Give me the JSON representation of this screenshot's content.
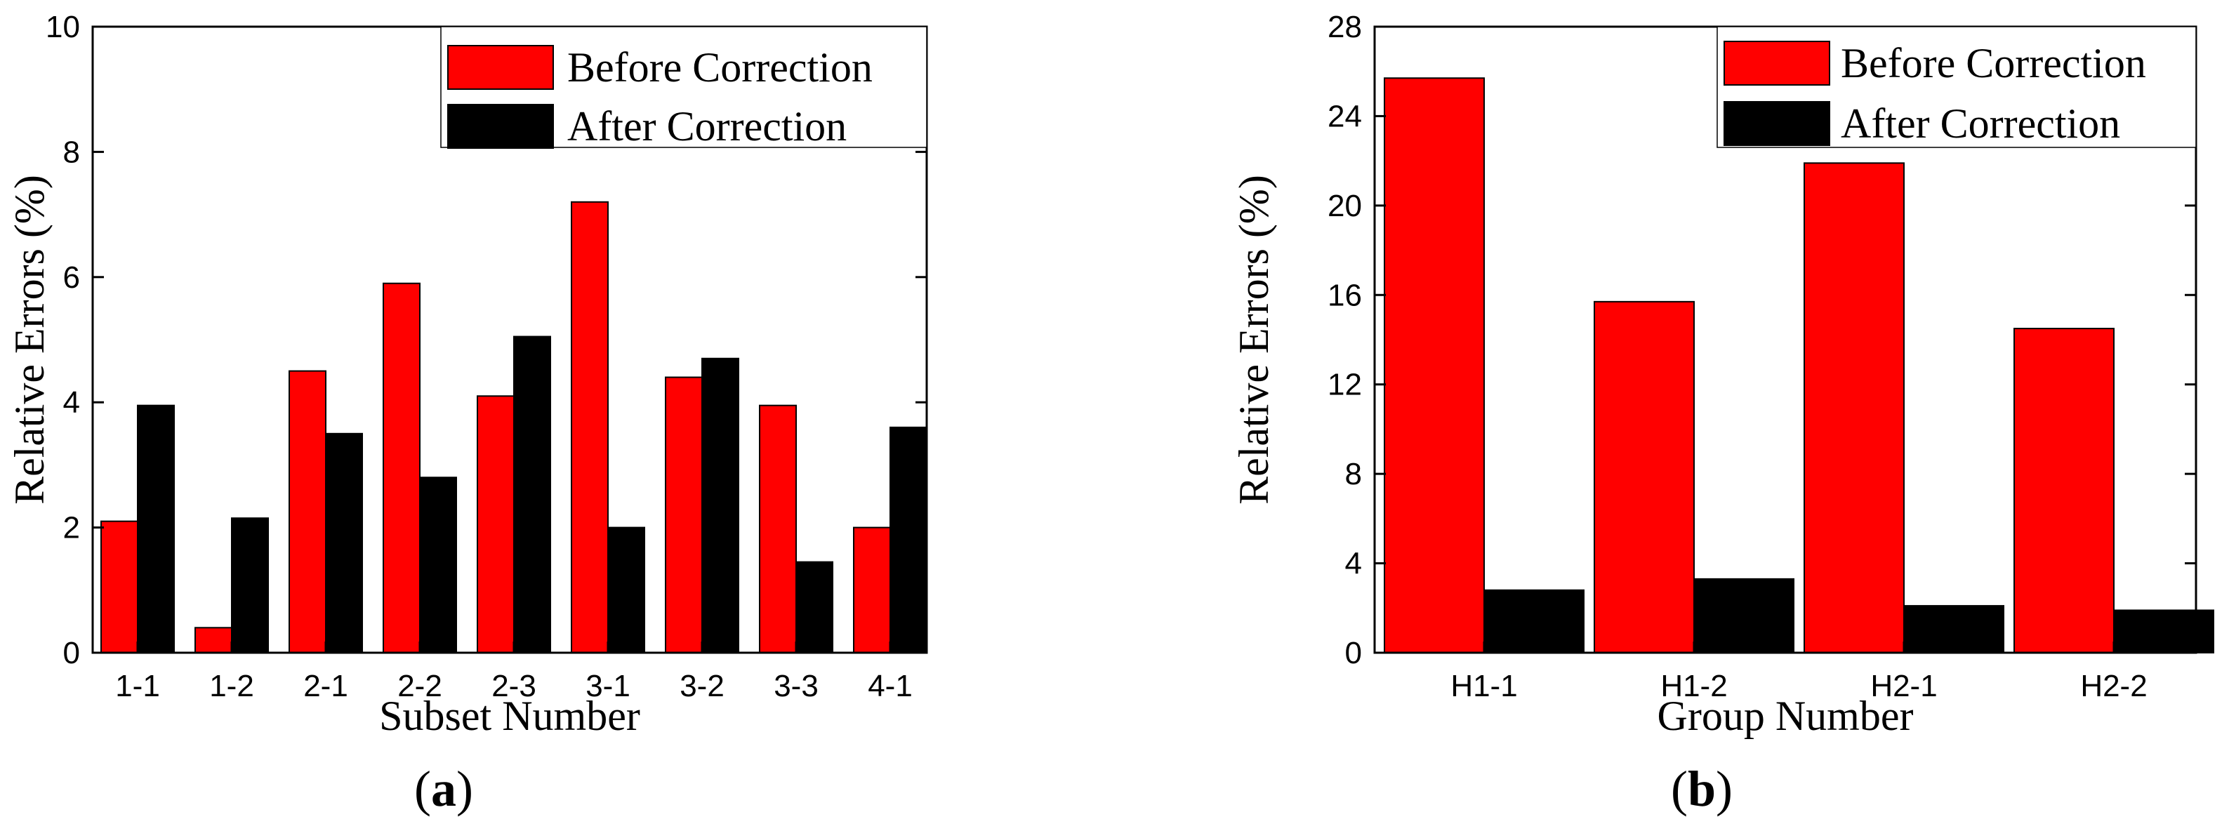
{
  "chart_data": [
    {
      "type": "bar",
      "panel_label": "a",
      "categories": [
        "1-1",
        "1-2",
        "2-1",
        "2-2",
        "2-3",
        "3-1",
        "3-2",
        "3-3",
        "4-1"
      ],
      "series": [
        {
          "name": "Before Correction",
          "color": "#ff0000",
          "values": [
            2.1,
            0.4,
            4.5,
            5.9,
            4.1,
            7.2,
            4.4,
            3.95,
            2.0
          ]
        },
        {
          "name": "After Correction",
          "color": "#000000",
          "values": [
            3.95,
            2.15,
            3.5,
            2.8,
            5.05,
            2.0,
            4.7,
            1.45,
            3.6
          ]
        }
      ],
      "xlabel": "Subset Number",
      "ylabel": "Relative Errors (%)",
      "ylim": [
        0,
        10
      ],
      "yticks": [
        0,
        2,
        4,
        6,
        8,
        10
      ],
      "legend_position": "top-right"
    },
    {
      "type": "bar",
      "panel_label": "b",
      "categories": [
        "H1-1",
        "H1-2",
        "H2-1",
        "H2-2"
      ],
      "series": [
        {
          "name": "Before Correction",
          "color": "#ff0000",
          "values": [
            25.7,
            15.7,
            21.9,
            14.5
          ]
        },
        {
          "name": "After Correction",
          "color": "#000000",
          "values": [
            2.8,
            3.3,
            2.1,
            1.9
          ]
        }
      ],
      "xlabel": "Group Number",
      "ylabel": "Relative Errors (%)",
      "ylim": [
        0,
        28
      ],
      "yticks": [
        0,
        4,
        8,
        12,
        16,
        20,
        24,
        28
      ],
      "legend_position": "top-right"
    }
  ]
}
